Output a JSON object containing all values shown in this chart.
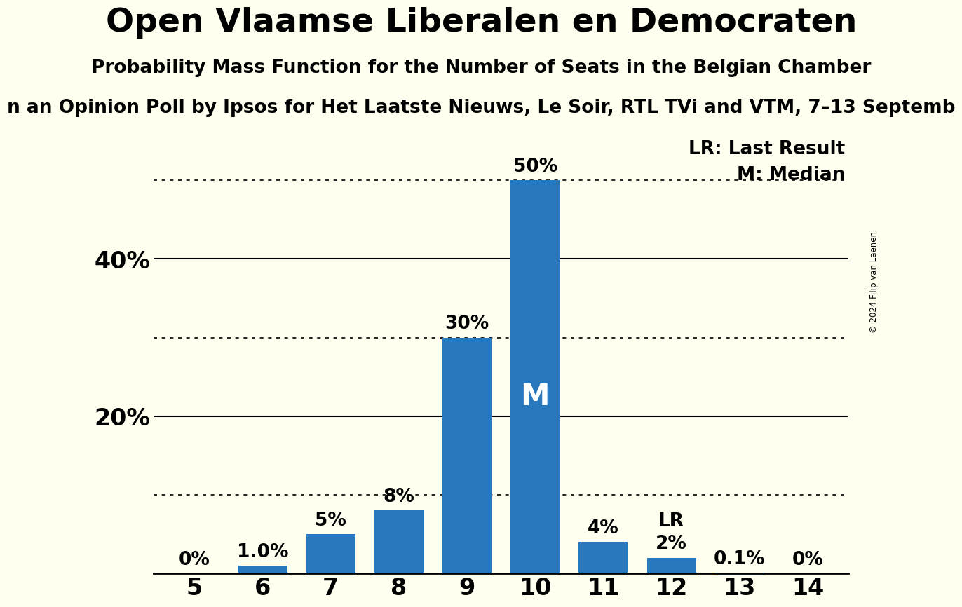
{
  "title": "Open Vlaamse Liberalen en Democraten",
  "subtitle": "Probability Mass Function for the Number of Seats in the Belgian Chamber",
  "subtitle2": "n an Opinion Poll by Ipsos for Het Laatste Nieuws, Le Soir, RTL TVi and VTM, 7–13 Septemb",
  "copyright": "© 2024 Filip van Laenen",
  "categories": [
    5,
    6,
    7,
    8,
    9,
    10,
    11,
    12,
    13,
    14
  ],
  "values": [
    0.0,
    1.0,
    5.0,
    8.0,
    30.0,
    50.0,
    4.0,
    2.0,
    0.1,
    0.0
  ],
  "labels": [
    "0%",
    "1.0%",
    "5%",
    "8%",
    "30%",
    "50%",
    "4%",
    "2%",
    "0.1%",
    "0%"
  ],
  "bar_color": "#2878BE",
  "background_color": "#FFFFF0",
  "median_bar": 10,
  "last_result_bar": 12,
  "median_label": "M",
  "lr_label": "LR",
  "legend_lr": "LR: Last Result",
  "legend_m": "M: Median",
  "dotted_lines": [
    10,
    30,
    50
  ],
  "solid_lines": [
    20,
    40
  ],
  "ylim": [
    0,
    56
  ],
  "title_fontsize": 34,
  "subtitle_fontsize": 19,
  "subtitle2_fontsize": 19,
  "axis_label_fontsize": 24,
  "bar_label_fontsize": 19,
  "legend_fontsize": 19,
  "median_label_fontsize": 30,
  "lr_label_fontsize": 19
}
